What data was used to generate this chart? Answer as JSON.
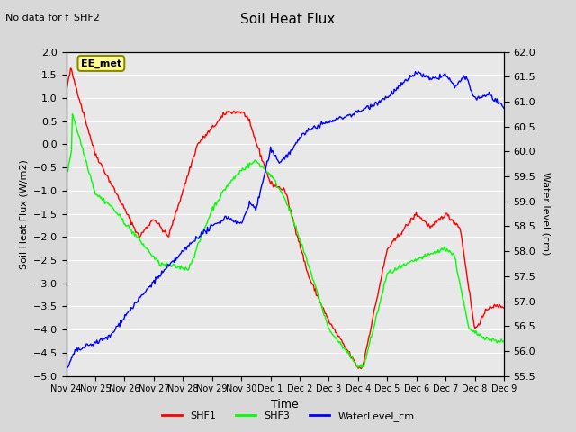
{
  "title": "Soil Heat Flux",
  "no_data_text": "No data for f_SHF2",
  "xlabel": "Time",
  "ylabel_left": "Soil Heat Flux (W/m2)",
  "ylabel_right": "Water level (cm)",
  "annotation": "EE_met",
  "ylim_left": [
    -5.0,
    2.0
  ],
  "ylim_right": [
    55.5,
    62.0
  ],
  "yticks_left": [
    -5.0,
    -4.5,
    -4.0,
    -3.5,
    -3.0,
    -2.5,
    -2.0,
    -1.5,
    -1.0,
    -0.5,
    0.0,
    0.5,
    1.0,
    1.5,
    2.0
  ],
  "yticks_right": [
    55.5,
    56.0,
    56.5,
    57.0,
    57.5,
    58.0,
    58.5,
    59.0,
    59.5,
    60.0,
    60.5,
    61.0,
    61.5,
    62.0
  ],
  "xtick_labels": [
    "Nov 24",
    "Nov 25",
    "Nov 26",
    "Nov 27",
    "Nov 28",
    "Nov 29",
    "Nov 30",
    "Dec 1",
    "Dec 2",
    "Dec 3",
    "Dec 4",
    "Dec 5",
    "Dec 6",
    "Dec 7",
    "Dec 8",
    "Dec 9"
  ],
  "background_color": "#d8d8d8",
  "plot_bg_color": "#e8e8e8",
  "grid_color": "#ffffff",
  "shf1_color": "red",
  "shf3_color": "lime",
  "wl_color": "blue",
  "legend_entries": [
    "SHF1",
    "SHF3",
    "WaterLevel_cm"
  ]
}
